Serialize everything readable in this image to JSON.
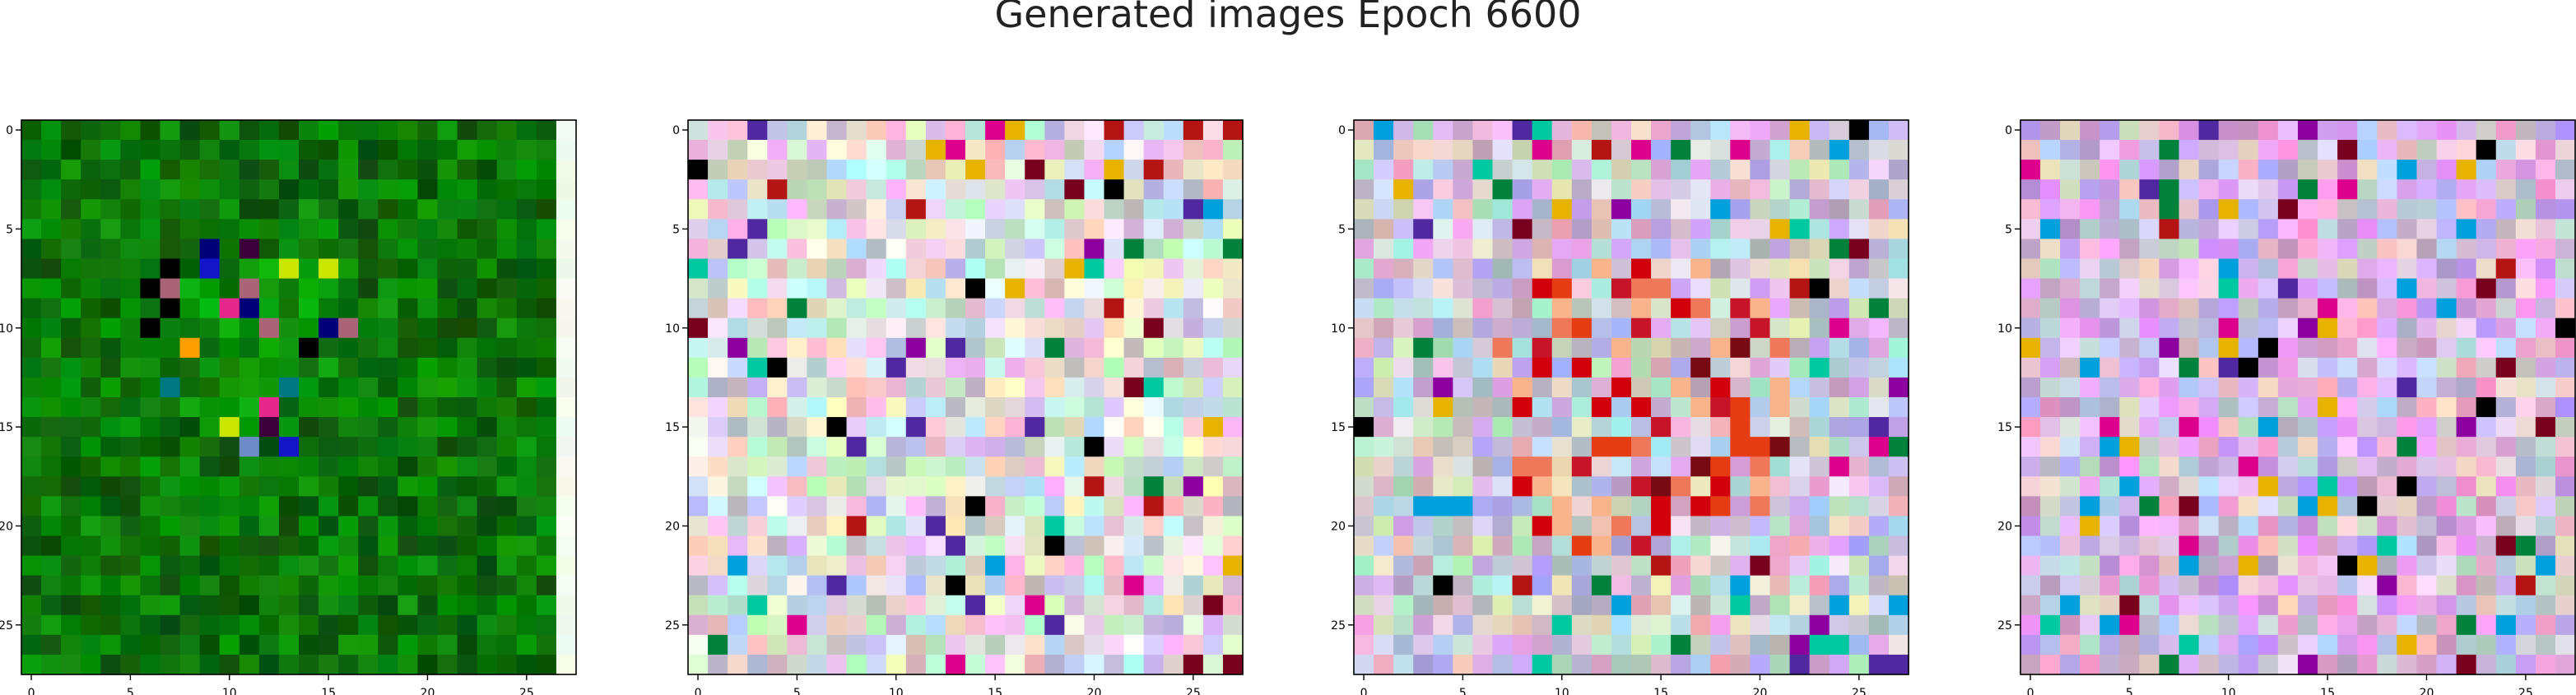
{
  "figure": {
    "title": "Generated images Epoch 6600"
  },
  "chart_data": [
    {
      "type": "heatmap",
      "palette": "green",
      "grid_size": 28,
      "xlim": [
        -0.5,
        27.5
      ],
      "ylim": [
        27.5,
        -0.5
      ],
      "xticks": [
        0,
        5,
        10,
        15,
        20,
        25
      ],
      "yticks": [
        0,
        5,
        10,
        15,
        20,
        25
      ],
      "grid": false,
      "seed": 11
    },
    {
      "type": "heatmap",
      "palette": "pastel-mixed",
      "grid_size": 28,
      "xlim": [
        -0.5,
        27.5
      ],
      "ylim": [
        27.5,
        -0.5
      ],
      "xticks": [
        0,
        5,
        10,
        15,
        20,
        25
      ],
      "yticks": [
        0,
        5,
        10,
        15,
        20,
        25
      ],
      "grid": false,
      "seed": 23
    },
    {
      "type": "heatmap",
      "palette": "pastel-red-center",
      "grid_size": 28,
      "xlim": [
        -0.5,
        27.5
      ],
      "ylim": [
        27.5,
        -0.5
      ],
      "xticks": [
        0,
        5,
        10,
        15,
        20,
        25
      ],
      "yticks": [
        0,
        5,
        10,
        15,
        20,
        25
      ],
      "grid": false,
      "seed": 37
    },
    {
      "type": "heatmap",
      "palette": "pastel-lavender",
      "grid_size": 28,
      "xlim": [
        -0.5,
        27.5
      ],
      "ylim": [
        27.5,
        -0.5
      ],
      "xticks": [
        0,
        5,
        10,
        15,
        20,
        25
      ],
      "yticks": [
        0,
        5,
        10,
        15,
        20,
        25
      ],
      "grid": false,
      "seed": 53
    }
  ]
}
